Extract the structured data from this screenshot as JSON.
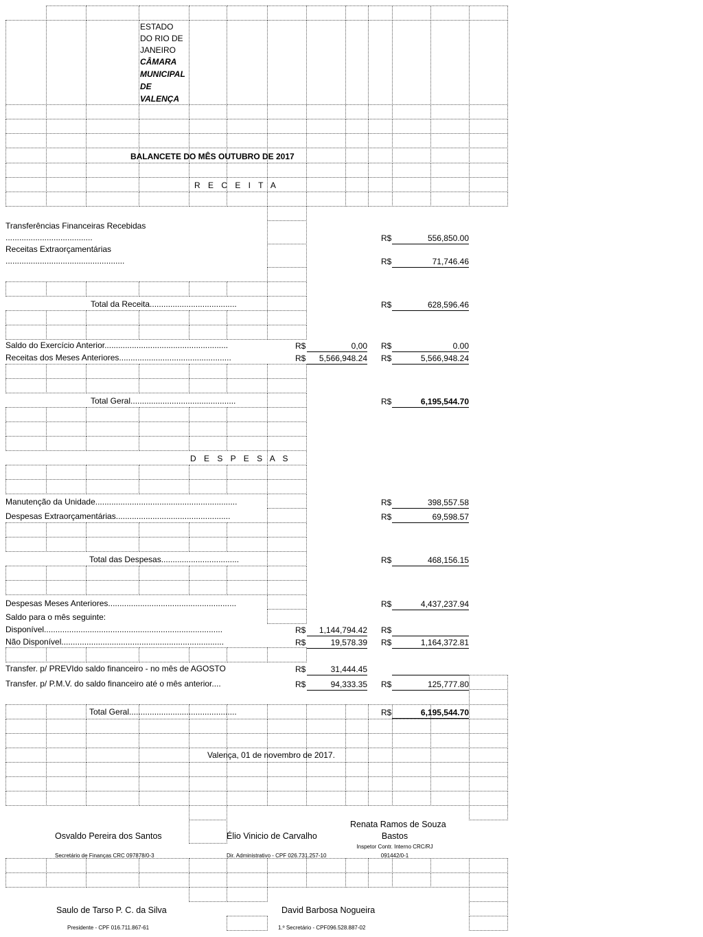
{
  "header": {
    "state": [
      "ESTADO",
      "DO RIO DE",
      "JANEIRO"
    ],
    "chamber": [
      "CÂMARA",
      "MUNICIPAL",
      "DE",
      "VALENÇA"
    ],
    "title": "BALANCETE DO MÊS OUTUBRO DE 2017"
  },
  "currency": "R$",
  "receita": {
    "heading": "R E C E I T A",
    "transferencias_label": "Transferências Financeiras Recebidas",
    "transferencias_dots": "......................................",
    "transferencias_value": "556,850.00",
    "extra_label": "Receitas Extraorçamentárias",
    "extra_dots": "....................................................",
    "extra_value": "71,746.46",
    "total_label": "Total da Receita......................................",
    "total_value": "628,596.46",
    "saldo_label": "Saldo do Exercício Anterior......................................................",
    "saldo_partial": "0,00",
    "saldo_value": "0.00",
    "anteriores_label": "Receitas dos Meses Anteriores.................................................",
    "anteriores_partial": "5,566,948.24",
    "anteriores_value": "5,566,948.24",
    "total_geral_label": "Total Geral..............................................",
    "total_geral_value": "6,195,544.70"
  },
  "despesas": {
    "heading": "D E S P E S A S",
    "manutencao_label": "Manutenção da Unidade..............................................................",
    "manutencao_value": "398,557.58",
    "extra_label": "Despesas Extraorçamentárias..................................................",
    "extra_value": "69,598.57",
    "total_label": "Total das Despesas..................................",
    "total_value": "468,156.15",
    "anteriores_label": "Despesas Meses Anteriores........................................................",
    "anteriores_value": "4,437,237.94",
    "saldo_label": "Saldo para o mês seguinte:",
    "disponivel_label": "Disponível..............................................................................",
    "disponivel_value": "1,144,794.42",
    "nao_disponivel_label": "Não Disponível.......................................................................",
    "nao_disponivel_value": "19,578.39",
    "saldo_total": "1,164,372.81",
    "previ_label": "Transfer. p/ PREVIdo saldo financeiro - no mês de AGOSTO",
    "previ_value": "31,444.45",
    "pmv_label": "Transfer. p/ P.M.V. do saldo financeiro até o mês anterior....",
    "pmv_value": "94,333.35",
    "transfer_total": "125,777.80",
    "total_geral_label": "Total Geral...............................................",
    "total_geral_value": "6,195,544.70"
  },
  "place_date": "Valença, 01 de novembro de 2017.",
  "signatures": [
    {
      "name": "Osvaldo Pereira dos Santos",
      "role": "Secretário de Finanças CRC 097878/0-3"
    },
    {
      "name": "Élio Vinicio de Carvalho",
      "role": "Dir. Administrativo - CPF 026.731.257-10"
    },
    {
      "name_lines": [
        "Renata Ramos de Souza",
        "Bastos"
      ],
      "role_lines": [
        "Inspetor Contr. Interno CRC/RJ",
        "091442/0-1"
      ]
    },
    {
      "name": "Saulo de Tarso P. C. da Silva",
      "role": "Presidente - CPF 016.711.867-61"
    },
    {
      "name": "David Barbosa Nogueira",
      "role": "1.º Secretário - CPF096.528.887-02"
    }
  ]
}
